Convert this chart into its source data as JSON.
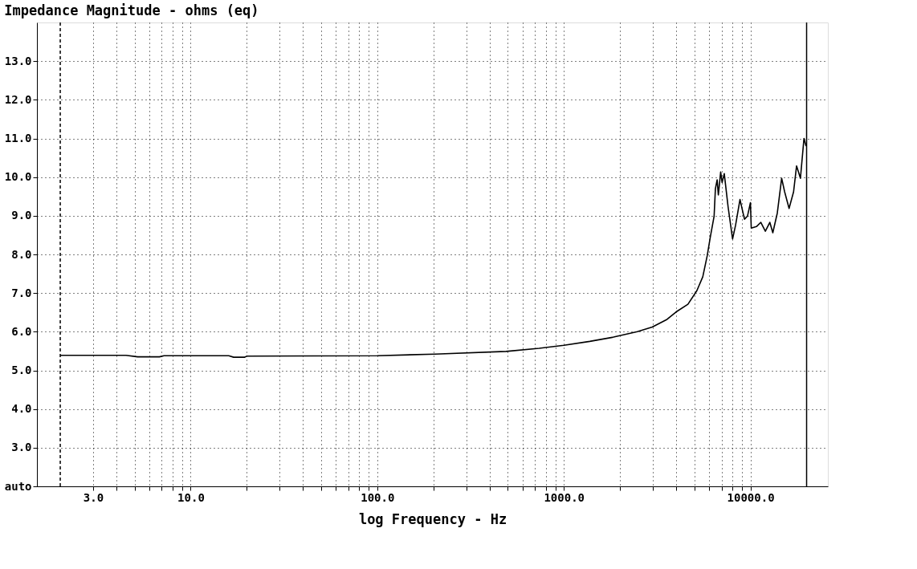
{
  "chart_data": {
    "type": "line",
    "title": "Impedance Magnitude - ohms (eq)",
    "xlabel": "log Frequency - Hz",
    "log": "x",
    "grid": true,
    "line_style": "solid",
    "xlim": [
      1.5,
      26000
    ],
    "ylim": [
      2,
      14
    ],
    "xticks": [
      {
        "value": 3,
        "label": "3.0"
      },
      {
        "value": 4,
        "label": null
      },
      {
        "value": 5,
        "label": null
      },
      {
        "value": 6,
        "label": null
      },
      {
        "value": 7,
        "label": null
      },
      {
        "value": 8,
        "label": null
      },
      {
        "value": 9,
        "label": null
      },
      {
        "value": 10,
        "label": "10.0"
      },
      {
        "value": 20,
        "label": null
      },
      {
        "value": 30,
        "label": null
      },
      {
        "value": 40,
        "label": null
      },
      {
        "value": 50,
        "label": null
      },
      {
        "value": 60,
        "label": null
      },
      {
        "value": 70,
        "label": null
      },
      {
        "value": 80,
        "label": null
      },
      {
        "value": 90,
        "label": null
      },
      {
        "value": 100,
        "label": "100.0"
      },
      {
        "value": 200,
        "label": null
      },
      {
        "value": 300,
        "label": null
      },
      {
        "value": 400,
        "label": null
      },
      {
        "value": 500,
        "label": null
      },
      {
        "value": 600,
        "label": null
      },
      {
        "value": 700,
        "label": null
      },
      {
        "value": 800,
        "label": null
      },
      {
        "value": 900,
        "label": null
      },
      {
        "value": 1000,
        "label": "1000.0"
      },
      {
        "value": 2000,
        "label": null
      },
      {
        "value": 3000,
        "label": null
      },
      {
        "value": 4000,
        "label": null
      },
      {
        "value": 5000,
        "label": null
      },
      {
        "value": 6000,
        "label": null
      },
      {
        "value": 7000,
        "label": null
      },
      {
        "value": 8000,
        "label": null
      },
      {
        "value": 9000,
        "label": null
      },
      {
        "value": 10000,
        "label": "10000.0"
      }
    ],
    "yticks": [
      {
        "value": 2,
        "label": "auto"
      },
      {
        "value": 3,
        "label": "3.0"
      },
      {
        "value": 4,
        "label": "4.0"
      },
      {
        "value": 5,
        "label": "5.0"
      },
      {
        "value": 6,
        "label": "6.0"
      },
      {
        "value": 7,
        "label": "7.0"
      },
      {
        "value": 8,
        "label": "8.0"
      },
      {
        "value": 9,
        "label": "9.0"
      },
      {
        "value": 10,
        "label": "10.0"
      },
      {
        "value": 11,
        "label": "11.0"
      },
      {
        "value": 12,
        "label": "12.0"
      },
      {
        "value": 13,
        "label": "13.0"
      }
    ],
    "ref_lines": [
      {
        "axis": "x",
        "value": 2,
        "line_style": "dashed",
        "color": "#000000"
      },
      {
        "axis": "x",
        "value": 20000,
        "line_style": "solid",
        "color": "#000000"
      }
    ],
    "series": [
      {
        "color": "#000000",
        "x": [
          2,
          4.5,
          5.2,
          6.8,
          7.2,
          16,
          17,
          19.5,
          20,
          100,
          204,
          490,
          737,
          1000,
          1377,
          1845,
          2477,
          2977,
          3574,
          3990,
          4623,
          5161,
          5554,
          5869,
          6089,
          6387,
          6490,
          6630,
          6730,
          6925,
          7050,
          7240,
          7590,
          8020,
          8320,
          8790,
          9290,
          9640,
          10000,
          10100,
          10770,
          11370,
          12020,
          12700,
          13180,
          13930,
          14700,
          15250,
          16110,
          17030,
          17670,
          18530,
          19360,
          19870
        ],
        "values": [
          5.39,
          5.39,
          5.35,
          5.35,
          5.38,
          5.38,
          5.34,
          5.34,
          5.37,
          5.38,
          5.42,
          5.49,
          5.57,
          5.65,
          5.75,
          5.86,
          6.0,
          6.12,
          6.32,
          6.51,
          6.71,
          7.06,
          7.42,
          7.97,
          8.44,
          8.99,
          9.7,
          9.93,
          9.54,
          10.13,
          9.86,
          10.09,
          9.23,
          8.4,
          8.75,
          9.42,
          8.91,
          8.99,
          9.34,
          8.68,
          8.72,
          8.83,
          8.6,
          8.83,
          8.56,
          9.07,
          9.97,
          9.62,
          9.19,
          9.62,
          10.29,
          9.97,
          11.0,
          10.8
        ]
      }
    ]
  }
}
